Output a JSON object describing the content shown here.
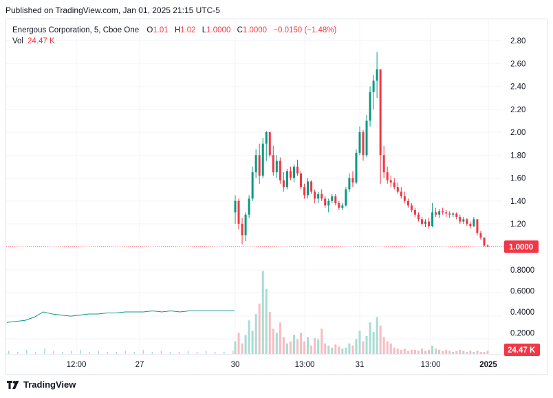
{
  "header": {
    "published": "Published on TradingView.com, Jan 01, 2025 21:15 UTC-5"
  },
  "legend": {
    "symbol": "Energous Corporation, 5, Cboe One",
    "open_label": "O",
    "open": "1.01",
    "high_label": "H",
    "high": "1.02",
    "low_label": "L",
    "low": "1.0000",
    "close_label": "C",
    "close": "1.0000",
    "change": "−0.0150 (−1.48%)",
    "vol_label": "Vol",
    "vol_value": "24.47 K"
  },
  "colors": {
    "up": "#089981",
    "down": "#f23645",
    "up_vol": "#a8dcd3",
    "down_vol": "#f7bcc1",
    "grid": "#f0f3fa",
    "last_price": "#f23645"
  },
  "price_tag": "1.0000",
  "volume_tag": "24.47 K",
  "footer": {
    "brand": "TradingView",
    "logo_icon": "tradingview-logo-icon"
  },
  "chart_data": {
    "type": "candlestick",
    "price_axis": {
      "ticks": [
        "2.80",
        "2.60",
        "2.40",
        "2.20",
        "2.00",
        "1.80",
        "1.60",
        "1.40",
        "1.20"
      ],
      "range": [
        0.9,
        2.9
      ]
    },
    "volume_axis": {
      "ticks": [
        "0.8000",
        "0.6000",
        "0.4000",
        "0.2000"
      ]
    },
    "time_axis": {
      "ticks": [
        "12:00",
        "27",
        "30",
        "13:00",
        "31",
        "13:00",
        "2025"
      ]
    },
    "last_price": 1.0,
    "last_volume": 24.47,
    "prev_session_price_line": [
      0.3,
      0.31,
      0.32,
      0.35,
      0.4,
      0.38,
      0.37,
      0.36,
      0.37,
      0.38,
      0.38,
      0.39,
      0.39,
      0.4,
      0.4,
      0.4,
      0.41,
      0.4,
      0.41,
      0.4,
      0.41,
      0.41,
      0.41,
      0.41,
      0.41,
      0.41
    ],
    "candles": [
      [
        1.3,
        1.45,
        1.2,
        1.4
      ],
      [
        1.4,
        1.42,
        1.15,
        1.2
      ],
      [
        1.2,
        1.25,
        1.02,
        1.1
      ],
      [
        1.1,
        1.3,
        1.05,
        1.28
      ],
      [
        1.28,
        1.45,
        1.25,
        1.42
      ],
      [
        1.42,
        1.7,
        1.4,
        1.65
      ],
      [
        1.65,
        1.85,
        1.6,
        1.8
      ],
      [
        1.8,
        1.9,
        1.55,
        1.62
      ],
      [
        1.62,
        1.95,
        1.6,
        1.9
      ],
      [
        1.9,
        2.01,
        1.75,
        2.0
      ],
      [
        2.0,
        2.0,
        1.78,
        1.8
      ],
      [
        1.8,
        1.88,
        1.62,
        1.65
      ],
      [
        1.65,
        1.8,
        1.6,
        1.75
      ],
      [
        1.75,
        1.78,
        1.55,
        1.58
      ],
      [
        1.58,
        1.65,
        1.48,
        1.52
      ],
      [
        1.52,
        1.68,
        1.5,
        1.66
      ],
      [
        1.66,
        1.7,
        1.58,
        1.6
      ],
      [
        1.6,
        1.72,
        1.56,
        1.7
      ],
      [
        1.7,
        1.76,
        1.62,
        1.64
      ],
      [
        1.64,
        1.66,
        1.5,
        1.52
      ],
      [
        1.52,
        1.55,
        1.42,
        1.45
      ],
      [
        1.45,
        1.6,
        1.42,
        1.57
      ],
      [
        1.57,
        1.58,
        1.46,
        1.48
      ],
      [
        1.48,
        1.5,
        1.38,
        1.42
      ],
      [
        1.42,
        1.48,
        1.38,
        1.46
      ],
      [
        1.46,
        1.5,
        1.4,
        1.42
      ],
      [
        1.42,
        1.44,
        1.34,
        1.36
      ],
      [
        1.36,
        1.42,
        1.3,
        1.4
      ],
      [
        1.4,
        1.46,
        1.38,
        1.44
      ],
      [
        1.44,
        1.46,
        1.36,
        1.38
      ],
      [
        1.38,
        1.4,
        1.32,
        1.34
      ],
      [
        1.34,
        1.38,
        1.32,
        1.36
      ],
      [
        1.36,
        1.52,
        1.35,
        1.5
      ],
      [
        1.5,
        1.64,
        1.48,
        1.6
      ],
      [
        1.6,
        1.66,
        1.52,
        1.56
      ],
      [
        1.56,
        1.85,
        1.55,
        1.82
      ],
      [
        1.82,
        2.05,
        1.8,
        2.0
      ],
      [
        2.0,
        2.02,
        1.75,
        1.8
      ],
      [
        1.8,
        2.15,
        1.78,
        2.1
      ],
      [
        2.1,
        2.4,
        2.05,
        2.35
      ],
      [
        2.35,
        2.5,
        2.2,
        2.45
      ],
      [
        2.45,
        2.7,
        2.3,
        2.55
      ],
      [
        2.55,
        2.55,
        1.55,
        1.8
      ],
      [
        1.8,
        1.88,
        1.6,
        1.65
      ],
      [
        1.65,
        1.7,
        1.55,
        1.58
      ],
      [
        1.58,
        1.62,
        1.52,
        1.56
      ],
      [
        1.56,
        1.6,
        1.5,
        1.52
      ],
      [
        1.52,
        1.56,
        1.46,
        1.48
      ],
      [
        1.48,
        1.52,
        1.42,
        1.44
      ],
      [
        1.44,
        1.48,
        1.38,
        1.4
      ],
      [
        1.4,
        1.42,
        1.34,
        1.36
      ],
      [
        1.36,
        1.38,
        1.3,
        1.32
      ],
      [
        1.32,
        1.34,
        1.26,
        1.28
      ],
      [
        1.28,
        1.3,
        1.22,
        1.24
      ],
      [
        1.24,
        1.26,
        1.18,
        1.2
      ],
      [
        1.2,
        1.24,
        1.17,
        1.22
      ],
      [
        1.22,
        1.25,
        1.16,
        1.18
      ],
      [
        1.18,
        1.38,
        1.17,
        1.3
      ],
      [
        1.3,
        1.34,
        1.26,
        1.28
      ],
      [
        1.28,
        1.33,
        1.25,
        1.31
      ],
      [
        1.31,
        1.34,
        1.28,
        1.3
      ],
      [
        1.3,
        1.32,
        1.26,
        1.29
      ],
      [
        1.29,
        1.31,
        1.25,
        1.28
      ],
      [
        1.28,
        1.3,
        1.26,
        1.29
      ],
      [
        1.29,
        1.3,
        1.24,
        1.26
      ],
      [
        1.26,
        1.28,
        1.2,
        1.22
      ],
      [
        1.22,
        1.26,
        1.2,
        1.24
      ],
      [
        1.24,
        1.25,
        1.18,
        1.2
      ],
      [
        1.2,
        1.22,
        1.16,
        1.18
      ],
      [
        1.18,
        1.26,
        1.17,
        1.24
      ],
      [
        1.24,
        1.24,
        1.1,
        1.12
      ],
      [
        1.12,
        1.14,
        1.06,
        1.08
      ],
      [
        1.08,
        1.08,
        1.0,
        1.01
      ],
      [
        1.01,
        1.02,
        1.0,
        1.0
      ]
    ],
    "volumes": [
      0.12,
      0.2,
      0.1,
      0.18,
      0.32,
      0.22,
      0.38,
      0.48,
      0.79,
      0.62,
      0.4,
      0.24,
      0.2,
      0.3,
      0.16,
      0.1,
      0.12,
      0.18,
      0.14,
      0.2,
      0.12,
      0.16,
      0.08,
      0.15,
      0.14,
      0.24,
      0.1,
      0.08,
      0.06,
      0.09,
      0.07,
      0.05,
      0.06,
      0.1,
      0.08,
      0.14,
      0.22,
      0.12,
      0.17,
      0.3,
      0.21,
      0.35,
      0.27,
      0.16,
      0.12,
      0.1,
      0.06,
      0.05,
      0.04,
      0.05,
      0.03,
      0.04,
      0.04,
      0.03,
      0.05,
      0.03,
      0.04,
      0.08,
      0.05,
      0.04,
      0.03,
      0.04,
      0.03,
      0.02,
      0.03,
      0.04,
      0.03,
      0.02,
      0.03,
      0.02,
      0.03,
      0.02,
      0.02,
      0.03
    ],
    "prev_session_volumes": [
      0.03,
      0.02,
      0.04,
      0.02,
      0.05,
      0.03,
      0.02,
      0.03,
      0.04,
      0.02,
      0.03,
      0.02,
      0.02,
      0.03,
      0.02,
      0.04,
      0.02,
      0.03,
      0.02,
      0.02,
      0.03,
      0.02,
      0.03,
      0.02,
      0.02,
      0.03
    ]
  }
}
